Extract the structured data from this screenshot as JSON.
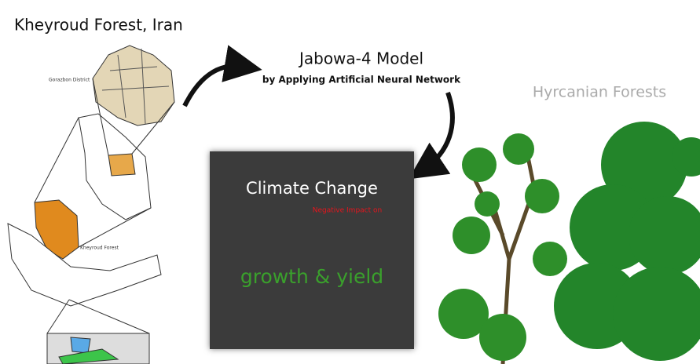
{
  "header": {
    "title": "Kheyroud Forest, Iran"
  },
  "map": {
    "district_label": "Gorazbon District",
    "forest_label": "Kheyroud Forest"
  },
  "model": {
    "title": "Jabowa-4 Model",
    "subtitle": "by Applying Artificial Neural Network"
  },
  "forest": {
    "label": "Hyrcanian Forests"
  },
  "panel": {
    "title": "Climate Change",
    "note": "Negative Impact on",
    "subject": "growth & yield"
  }
}
